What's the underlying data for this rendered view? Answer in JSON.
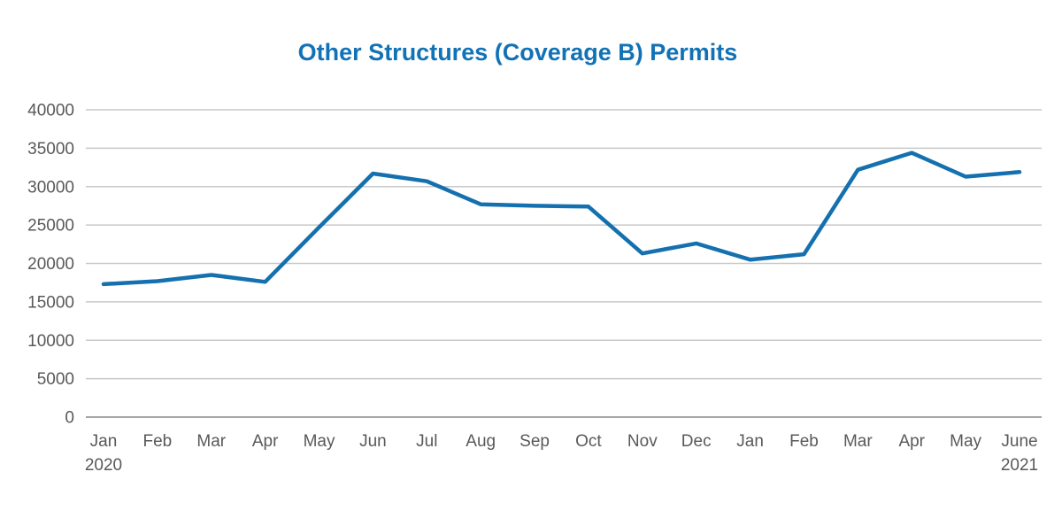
{
  "chart_data": {
    "type": "line",
    "title": "Other Structures (Coverage B) Permits",
    "categories": [
      "Jan 2020",
      "Feb",
      "Mar",
      "Apr",
      "May",
      "Jun",
      "Jul",
      "Aug",
      "Sep",
      "Oct",
      "Nov",
      "Dec",
      "Jan",
      "Feb",
      "Mar",
      "Apr",
      "May",
      "June 2021"
    ],
    "series": [
      {
        "name": "Other Structures (Coverage B) Permits",
        "values": [
          17300,
          17700,
          18500,
          17600,
          24700,
          31700,
          30700,
          27700,
          27500,
          27400,
          21300,
          22600,
          20500,
          21200,
          32200,
          34400,
          31300,
          31900
        ]
      }
    ],
    "xlabel": "",
    "ylabel": "",
    "ylim": [
      0,
      40000
    ],
    "yticks": [
      0,
      5000,
      10000,
      15000,
      20000,
      25000,
      30000,
      35000,
      40000
    ],
    "grid": true,
    "legend": false,
    "colors": {
      "line": "#1470AF",
      "title": "#1272B6",
      "tick_label": "#595959",
      "gridline": "#C9C9C9",
      "axis_line": "#A6A6A6",
      "background": "#FFFFFF"
    }
  }
}
